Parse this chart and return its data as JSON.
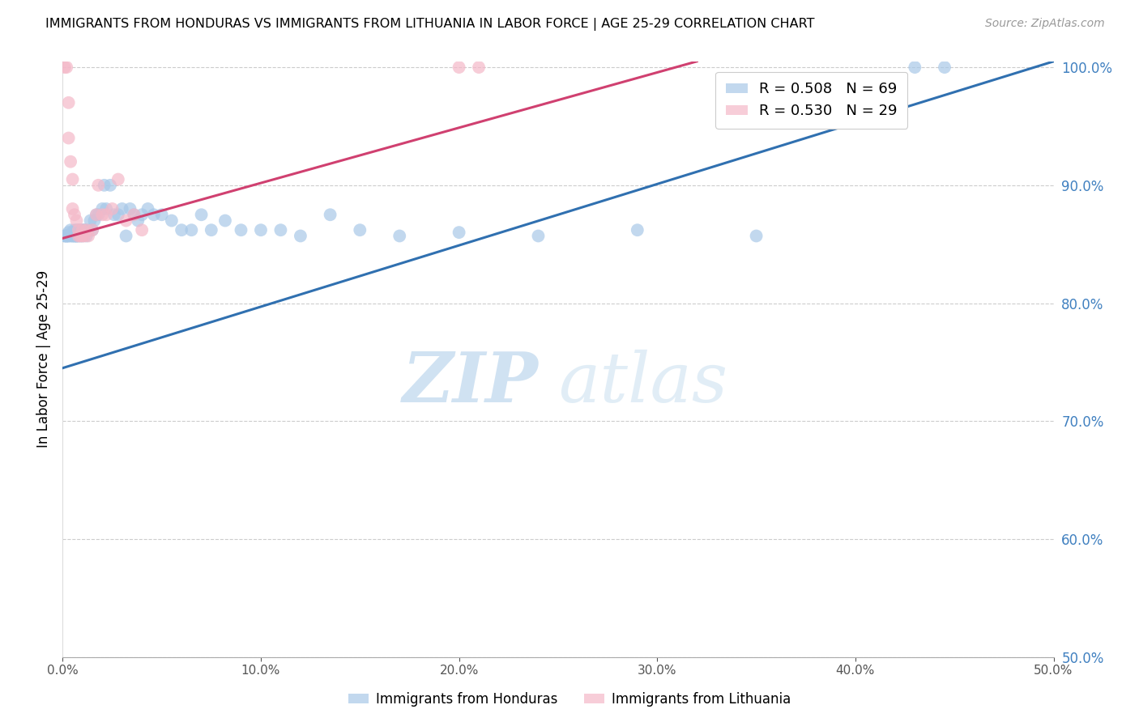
{
  "title": "IMMIGRANTS FROM HONDURAS VS IMMIGRANTS FROM LITHUANIA IN LABOR FORCE | AGE 25-29 CORRELATION CHART",
  "source": "Source: ZipAtlas.com",
  "ylabel_left": "In Labor Force | Age 25-29",
  "R_honduras": 0.508,
  "N_honduras": 69,
  "R_lithuania": 0.53,
  "N_lithuania": 29,
  "color_honduras": "#a8c8e8",
  "color_lithuania": "#f4b8c8",
  "color_trendline_honduras": "#3070b0",
  "color_trendline_lithuania": "#d04070",
  "color_right_axis": "#4080c0",
  "color_grid": "#cccccc",
  "xmin": 0.0,
  "xmax": 0.5,
  "ymin": 0.5,
  "ymax": 1.005,
  "x_ticks": [
    0.0,
    0.1,
    0.2,
    0.3,
    0.4,
    0.5
  ],
  "y_ticks_right": [
    0.5,
    0.6,
    0.7,
    0.8,
    0.9,
    1.0
  ],
  "watermark_zip": "ZIP",
  "watermark_atlas": "atlas",
  "legend_label_h": "R = 0.508   N = 69",
  "legend_label_l": "R = 0.530   N = 29",
  "bottom_label_h": "Immigrants from Honduras",
  "bottom_label_l": "Immigrants from Lithuania",
  "honduras_x": [
    0.001,
    0.001,
    0.002,
    0.002,
    0.002,
    0.003,
    0.003,
    0.003,
    0.004,
    0.004,
    0.005,
    0.005,
    0.005,
    0.006,
    0.006,
    0.006,
    0.007,
    0.007,
    0.007,
    0.007,
    0.008,
    0.008,
    0.009,
    0.009,
    0.01,
    0.01,
    0.011,
    0.011,
    0.012,
    0.013,
    0.014,
    0.015,
    0.016,
    0.017,
    0.018,
    0.02,
    0.021,
    0.022,
    0.024,
    0.026,
    0.028,
    0.03,
    0.032,
    0.034,
    0.036,
    0.038,
    0.04,
    0.043,
    0.046,
    0.05,
    0.055,
    0.06,
    0.065,
    0.07,
    0.075,
    0.082,
    0.09,
    0.1,
    0.11,
    0.12,
    0.135,
    0.15,
    0.17,
    0.2,
    0.24,
    0.29,
    0.35,
    0.43,
    0.445
  ],
  "honduras_y": [
    0.857,
    0.857,
    0.857,
    0.857,
    0.857,
    0.857,
    0.857,
    0.86,
    0.857,
    0.862,
    0.857,
    0.857,
    0.86,
    0.857,
    0.857,
    0.862,
    0.857,
    0.857,
    0.857,
    0.862,
    0.857,
    0.862,
    0.857,
    0.862,
    0.857,
    0.862,
    0.862,
    0.862,
    0.857,
    0.862,
    0.87,
    0.862,
    0.87,
    0.875,
    0.875,
    0.88,
    0.9,
    0.88,
    0.9,
    0.875,
    0.875,
    0.88,
    0.857,
    0.88,
    0.875,
    0.87,
    0.875,
    0.88,
    0.875,
    0.875,
    0.87,
    0.862,
    0.862,
    0.875,
    0.862,
    0.87,
    0.862,
    0.862,
    0.862,
    0.857,
    0.875,
    0.862,
    0.857,
    0.86,
    0.857,
    0.862,
    0.857,
    1.0,
    1.0
  ],
  "lithuania_x": [
    0.001,
    0.002,
    0.003,
    0.003,
    0.004,
    0.005,
    0.005,
    0.006,
    0.007,
    0.008,
    0.008,
    0.009,
    0.01,
    0.01,
    0.011,
    0.012,
    0.013,
    0.015,
    0.017,
    0.018,
    0.02,
    0.022,
    0.025,
    0.028,
    0.032,
    0.036,
    0.04,
    0.2,
    0.21
  ],
  "lithuania_y": [
    1.0,
    1.0,
    0.97,
    0.94,
    0.92,
    0.905,
    0.88,
    0.875,
    0.87,
    0.862,
    0.857,
    0.857,
    0.857,
    0.862,
    0.857,
    0.862,
    0.857,
    0.862,
    0.875,
    0.9,
    0.875,
    0.875,
    0.88,
    0.905,
    0.87,
    0.875,
    0.862,
    1.0,
    1.0
  ],
  "trendline_h_x0": 0.0,
  "trendline_h_x1": 0.5,
  "trendline_h_y0": 0.745,
  "trendline_h_y1": 1.005,
  "trendline_l_x0": 0.0,
  "trendline_l_x1": 0.32,
  "trendline_l_y0": 0.855,
  "trendline_l_y1": 1.005
}
